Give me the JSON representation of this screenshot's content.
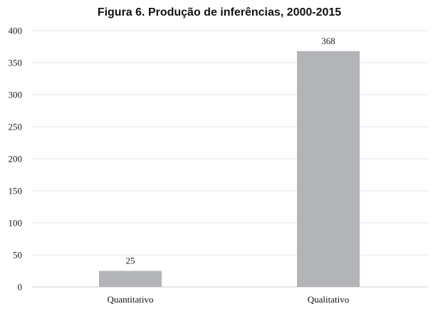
{
  "chart_data": {
    "type": "bar",
    "title": "Figura 6. Produção de inferências, 2000-2015",
    "categories": [
      "Quantitativo",
      "Qualitativo"
    ],
    "values": [
      25,
      368
    ],
    "ylim": [
      0,
      400
    ],
    "yticks": [
      0,
      50,
      100,
      150,
      200,
      250,
      300,
      350,
      400
    ],
    "ytick_labels": [
      "0",
      "50",
      "100",
      "150",
      "200",
      "250",
      "300",
      "350",
      "400"
    ],
    "data_labels": [
      "25",
      "368"
    ],
    "grid": true,
    "legend": "none",
    "bar_color": "#b3b4b8"
  }
}
